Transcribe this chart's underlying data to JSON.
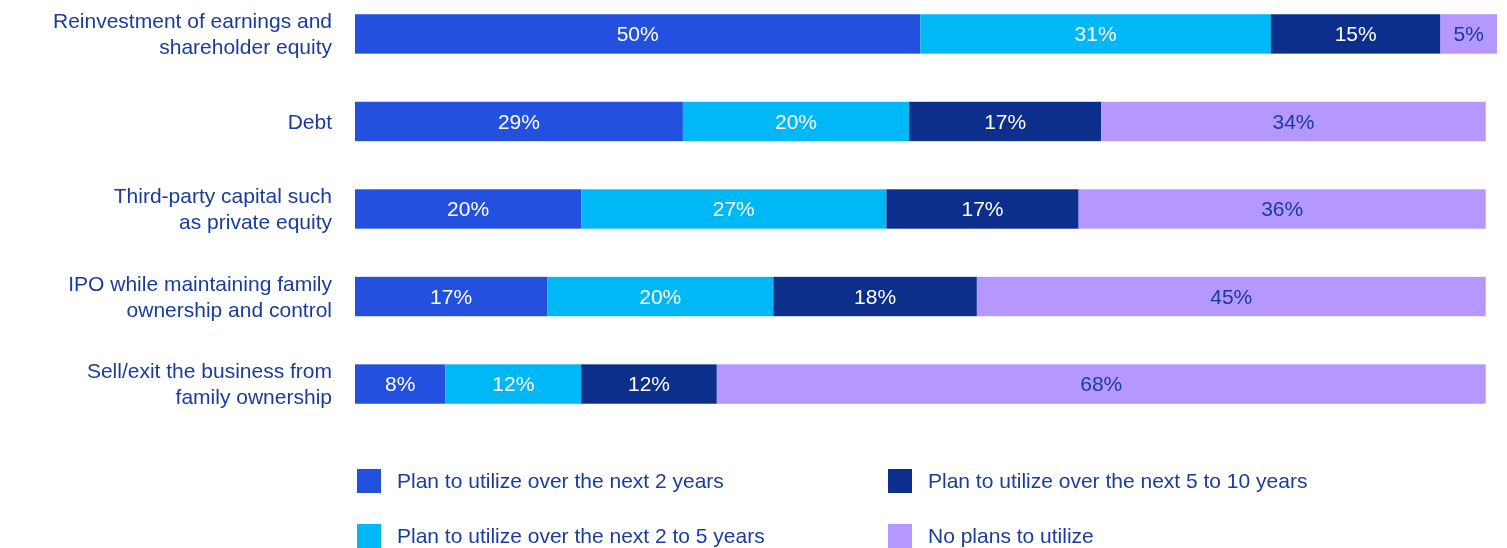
{
  "chart_data": {
    "type": "bar",
    "orientation": "horizontal",
    "stacked": true,
    "legend": "bottom",
    "tick_labels": "y",
    "xlim": [
      0,
      101
    ],
    "categories": [
      "Reinvestment of earnings and\nshareholder equity",
      "Debt",
      "Third-party capital such\nas private equity",
      "IPO while maintaining family\nownership and control",
      "Sell/exit the business from\nfamily ownership"
    ],
    "series": [
      {
        "name": "Plan to utilize over the next 2 years",
        "color": "#2450e0",
        "values": [
          50,
          29,
          20,
          17,
          8
        ],
        "value_labels": [
          "50%",
          "29%",
          "20%",
          "17%",
          "8%"
        ]
      },
      {
        "name": "Plan to utilize over the next 2 to 5 years",
        "color": "#00b8f5",
        "values": [
          31,
          20,
          27,
          20,
          12
        ],
        "value_labels": [
          "31%",
          "20%",
          "27%",
          "20%",
          "12%"
        ]
      },
      {
        "name": "Plan to utilize over the next 5 to 10 years",
        "color": "#0c2f8c",
        "values": [
          15,
          17,
          17,
          18,
          12
        ],
        "value_labels": [
          "15%",
          "17%",
          "17%",
          "18%",
          "12%"
        ]
      },
      {
        "name": "No plans to utilize",
        "color": "#b497ff",
        "values": [
          5,
          34,
          36,
          45,
          68
        ],
        "value_labels": [
          "5%",
          "34%",
          "36%",
          "45%",
          "68%"
        ]
      }
    ]
  }
}
